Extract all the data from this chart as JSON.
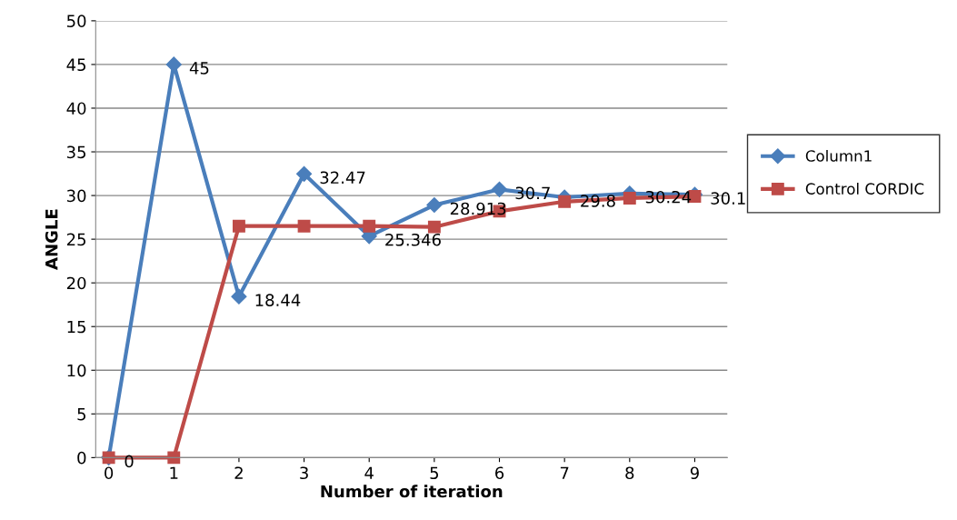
{
  "chart_data": {
    "type": "line",
    "xlabel": "Number of iteration",
    "ylabel": "ANGLE",
    "categories": [
      "0",
      "1",
      "2",
      "3",
      "4",
      "5",
      "6",
      "7",
      "8",
      "9"
    ],
    "series": [
      {
        "name": "Column1",
        "color": "#4a7ebb",
        "marker": "diamond",
        "values": [
          0,
          45,
          18.44,
          32.47,
          25.346,
          28.913,
          30.7,
          29.8,
          30.24,
          30.1
        ],
        "value_labels": [
          "0",
          "45",
          "18.44",
          "32.47",
          "25.346",
          "28.913",
          "30.7",
          "29.8",
          "30.24",
          "30.1"
        ]
      },
      {
        "name": "Control CORDIC",
        "color": "#be4b48",
        "marker": "square",
        "values": [
          0,
          0,
          26.5,
          26.5,
          26.5,
          26.4,
          28.2,
          29.3,
          29.7,
          29.9
        ]
      }
    ],
    "ylim": [
      0,
      50
    ],
    "yticks": [
      0,
      5,
      10,
      15,
      20,
      25,
      30,
      35,
      40,
      45,
      50
    ],
    "grid": "y",
    "legend": "right"
  }
}
